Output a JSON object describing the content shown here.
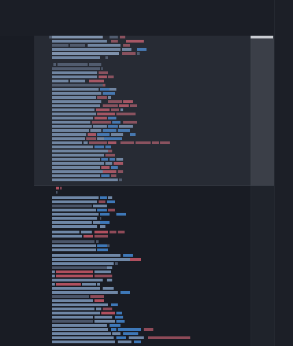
{
  "colors": {
    "background": "#191c24",
    "code_text": "#6f87a6",
    "code_text_light": "#8298b4",
    "code_dim": "#4b566a",
    "keyword": "#b0505f",
    "keyword_soft": "#8e4a58",
    "type": "#3e78b8",
    "thumb_cap": "#c9ccd2"
  },
  "minimap": {
    "visible_fraction": 0.48
  }
}
